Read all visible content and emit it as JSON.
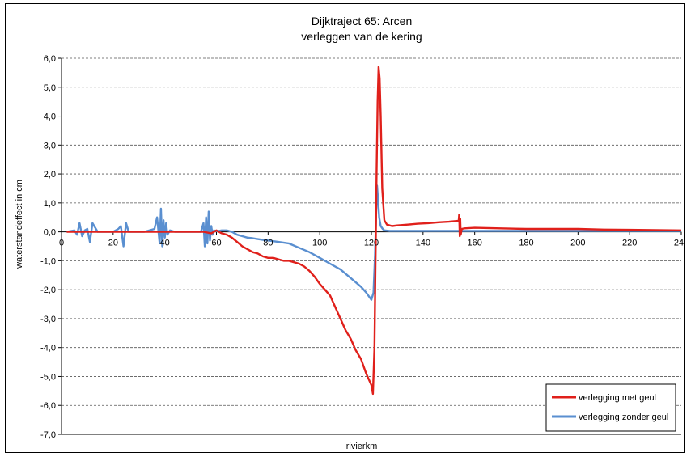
{
  "chart_data": {
    "type": "line",
    "title": "Dijktraject 65: Arcen",
    "subtitle": "verleggen van de kering",
    "xlabel": "rivierkm",
    "ylabel": "waterstandeffect in cm",
    "xlim": [
      0,
      240
    ],
    "ylim": [
      -7.0,
      6.0
    ],
    "xticks": [
      {
        "value": 0,
        "label": "0"
      },
      {
        "value": 20,
        "label": "20"
      },
      {
        "value": 40,
        "label": "40"
      },
      {
        "value": 60,
        "label": "60"
      },
      {
        "value": 80,
        "label": "80"
      },
      {
        "value": 100,
        "label": "100"
      },
      {
        "value": 120,
        "label": "120"
      },
      {
        "value": 140,
        "label": "140"
      },
      {
        "value": 160,
        "label": "160"
      },
      {
        "value": 180,
        "label": "180"
      },
      {
        "value": 200,
        "label": "200"
      },
      {
        "value": 220,
        "label": "220"
      },
      {
        "value": 240,
        "label": "240"
      }
    ],
    "yticks": [
      {
        "value": 6,
        "label": "6,0"
      },
      {
        "value": 5,
        "label": "5,0"
      },
      {
        "value": 4,
        "label": "4,0"
      },
      {
        "value": 3,
        "label": "3,0"
      },
      {
        "value": 2,
        "label": "2,0"
      },
      {
        "value": 1,
        "label": "1,0"
      },
      {
        "value": 0,
        "label": "0,0"
      },
      {
        "value": -1,
        "label": "-1,0"
      },
      {
        "value": -2,
        "label": "-2,0"
      },
      {
        "value": -3,
        "label": "-3,0"
      },
      {
        "value": -4,
        "label": "-4,0"
      },
      {
        "value": -5,
        "label": "-5,0"
      },
      {
        "value": -6,
        "label": "-6,0"
      },
      {
        "value": -7,
        "label": "-7,0"
      }
    ],
    "grid": "horizontal dashed",
    "legend_position": "bottom-right",
    "series": [
      {
        "name": "verlegging met geul",
        "color": "#e0201b",
        "x": [
          2,
          55,
          58,
          60,
          62,
          64,
          66,
          68,
          70,
          72,
          74,
          76,
          78,
          80,
          82,
          84,
          86,
          88,
          90,
          92,
          94,
          96,
          98,
          100,
          102,
          104,
          106,
          108,
          110,
          112,
          114,
          116,
          118,
          119,
          120,
          120.6,
          121.2,
          121.6,
          122,
          122.4,
          122.8,
          123.2,
          123.6,
          124.2,
          125,
          126,
          128,
          130,
          134,
          138,
          142,
          146,
          150,
          153.8,
          154,
          154.2,
          154.4,
          154.6,
          155,
          156,
          160,
          170,
          180,
          190,
          200,
          210,
          220,
          230,
          240
        ],
        "y": [
          0,
          0,
          -0.05,
          0.05,
          -0.05,
          -0.1,
          -0.2,
          -0.35,
          -0.5,
          -0.6,
          -0.7,
          -0.75,
          -0.85,
          -0.9,
          -0.9,
          -0.95,
          -1.0,
          -1.0,
          -1.05,
          -1.1,
          -1.2,
          -1.35,
          -1.55,
          -1.8,
          -2.0,
          -2.2,
          -2.6,
          -3.0,
          -3.4,
          -3.7,
          -4.1,
          -4.4,
          -4.9,
          -5.1,
          -5.3,
          -5.6,
          -4.0,
          -1.0,
          2.0,
          4.5,
          5.7,
          5.3,
          4.0,
          1.5,
          0.4,
          0.25,
          0.2,
          0.22,
          0.25,
          0.28,
          0.3,
          0.33,
          0.35,
          0.38,
          0.6,
          -0.15,
          0.45,
          -0.1,
          0.1,
          0.12,
          0.14,
          0.12,
          0.1,
          0.1,
          0.1,
          0.08,
          0.07,
          0.06,
          0.05
        ]
      },
      {
        "name": "verlegging zonder geul",
        "color": "#5a8fd0",
        "x": [
          2,
          5,
          6,
          7,
          8,
          9,
          10,
          11,
          12,
          14,
          20,
          22,
          23,
          24,
          25,
          26,
          28,
          32,
          36,
          37,
          38,
          38.5,
          39,
          39.5,
          40,
          40.5,
          41,
          42,
          44,
          46,
          50,
          54,
          55,
          55.5,
          56,
          56.5,
          57,
          57.5,
          58,
          58.5,
          59,
          60,
          62,
          64,
          66,
          68,
          70,
          72,
          74,
          76,
          78,
          80,
          84,
          88,
          92,
          96,
          100,
          104,
          108,
          112,
          116,
          118,
          120,
          120.8,
          121.4,
          121.8,
          122.2,
          122.6,
          123,
          123.6,
          124.4,
          125,
          127,
          130,
          140,
          150,
          154,
          160,
          170,
          180,
          200,
          220,
          240
        ],
        "y": [
          0,
          0.05,
          -0.1,
          0.3,
          -0.15,
          0.05,
          0.1,
          -0.35,
          0.3,
          0,
          0,
          0.1,
          0.2,
          -0.5,
          0.3,
          0,
          0,
          0,
          0.1,
          0.5,
          -0.4,
          0.8,
          -0.5,
          0.4,
          -0.2,
          0.3,
          -0.1,
          0.05,
          0,
          0,
          0,
          0,
          0.3,
          -0.5,
          0.5,
          -0.4,
          0.7,
          -0.3,
          0.2,
          -0.1,
          0.05,
          0.02,
          0.05,
          0.05,
          0,
          -0.1,
          -0.15,
          -0.2,
          -0.22,
          -0.25,
          -0.28,
          -0.3,
          -0.35,
          -0.4,
          -0.55,
          -0.7,
          -0.9,
          -1.1,
          -1.3,
          -1.6,
          -1.9,
          -2.1,
          -2.35,
          -2.1,
          -0.8,
          0.5,
          1.6,
          1.1,
          0.5,
          0.2,
          0.1,
          0.05,
          0.03,
          0.03,
          0.03,
          0.03,
          0.03,
          0.03,
          0.03,
          0.03,
          0.03,
          0.03,
          0.03
        ]
      }
    ]
  }
}
